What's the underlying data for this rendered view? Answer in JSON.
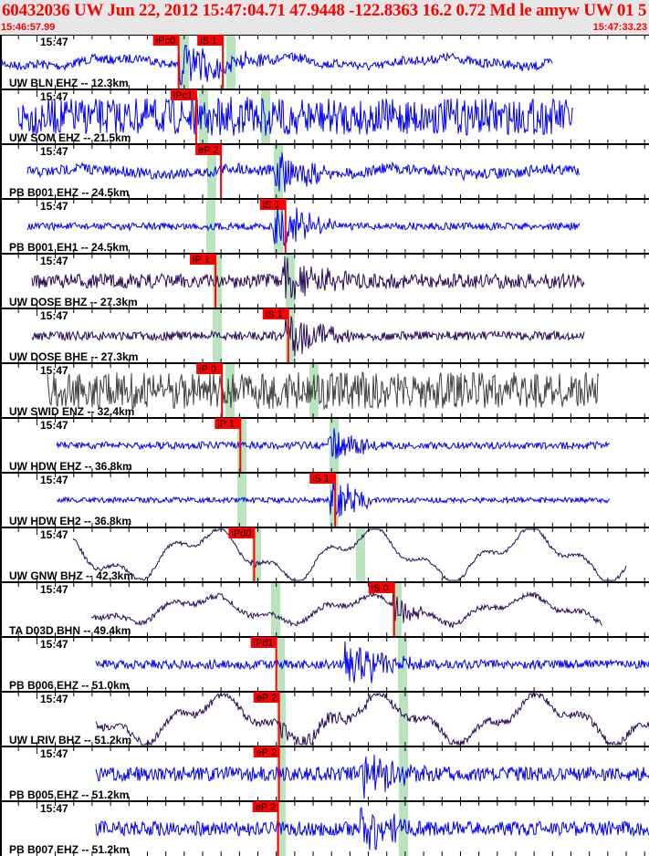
{
  "header": {
    "title": "60432036 UW Jun 22, 2012 15:47:04.71   47.9448 -122.8363 16.2 0.72 Md le amyw UW 01   5",
    "start_time": "15:46:57.99",
    "end_time": "15:47:33.23"
  },
  "chart_data": {
    "type": "line",
    "title": "60432036 UW Jun 22, 2012 15:47:04.71",
    "x_range_seconds": [
      0,
      35.24
    ],
    "tick_interval_seconds": 1,
    "minute_label": "15:47",
    "colors": {
      "pick": "#ff0000",
      "window": "#b9e4bd",
      "blue": "#0000ff",
      "purple": "#2a0a5a",
      "gray": "#404040"
    },
    "traces": [
      {
        "station": "UW BLN EHZ -- 12.3km",
        "color": "blue",
        "picks": [
          {
            "label": "iPc0",
            "t": 9.7
          },
          {
            "label": "iS 1",
            "t": 12.1
          }
        ]
      },
      {
        "station": "UW SOM EHZ -- 21.5km",
        "color": "blue",
        "picks": [
          {
            "label": "iPc1",
            "t": 10.65
          }
        ]
      },
      {
        "station": "PB B001 EHZ -- 24.5km",
        "color": "blue",
        "picks": [
          {
            "label": "eP 2",
            "t": 12.0
          }
        ]
      },
      {
        "station": "PB B001 EH1 -- 24.5km",
        "color": "blue",
        "picks": [
          {
            "label": "iS 1",
            "t": 15.5
          }
        ]
      },
      {
        "station": "UW DOSE BHZ -- 27.3km",
        "color": "purple",
        "picks": [
          {
            "label": "iP 1",
            "t": 11.7
          }
        ]
      },
      {
        "station": "UW DOSE BHE -- 27.3km",
        "color": "purple",
        "picks": [
          {
            "label": "iS 1",
            "t": 15.65
          }
        ]
      },
      {
        "station": "UW SWID ENZ -- 32.4km",
        "color": "gray",
        "picks": [
          {
            "label": "iP 0",
            "t": 12.05
          }
        ]
      },
      {
        "station": "UW HDW EHZ -- 36.8km",
        "color": "blue",
        "picks": [
          {
            "label": "iP 1",
            "t": 13.05
          }
        ]
      },
      {
        "station": "UW HDW EH2 -- 36.8km",
        "color": "blue",
        "picks": [
          {
            "label": "iS 1",
            "t": 18.2
          }
        ]
      },
      {
        "station": "UW GNW BHZ -- 42.3km",
        "color": "purple",
        "picks": [
          {
            "label": "iPd0",
            "t": 13.8
          }
        ]
      },
      {
        "station": "TA D03D BHN -- 49.4km",
        "color": "purple",
        "picks": [
          {
            "label": "iS 0",
            "t": 21.4
          }
        ]
      },
      {
        "station": "PB B006 EHZ -- 51.0km",
        "color": "blue",
        "picks": [
          {
            "label": "iPd1",
            "t": 15.0
          }
        ]
      },
      {
        "station": "UW LRIV BHZ -- 51.2km",
        "color": "purple",
        "picks": [
          {
            "label": "eP 2",
            "t": 15.15
          }
        ]
      },
      {
        "station": "PB B005 EHZ -- 51.2km",
        "color": "blue",
        "picks": [
          {
            "label": "eP 2",
            "t": 15.15
          }
        ]
      },
      {
        "station": "PB B007 EHZ -- 51.2km",
        "color": "blue",
        "picks": [
          {
            "label": "eP 2",
            "t": 15.1
          }
        ]
      }
    ]
  }
}
